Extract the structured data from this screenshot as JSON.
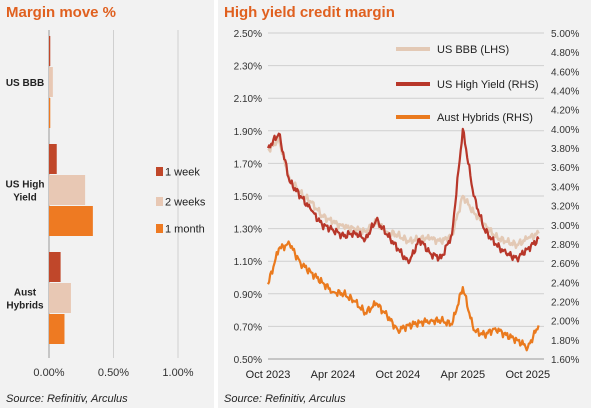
{
  "colors": {
    "title": "#e0601f",
    "one_week": "#c0472a",
    "two_weeks": "#e8c8b4",
    "one_month": "#ee7a22",
    "us_bbb": "#e3c9b5",
    "us_high_yield": "#b8372a",
    "aust_hybrids": "#ea7a1e",
    "panel_bg": "#f2f2f2"
  },
  "left": {
    "title": "Margin move %",
    "source": "Source: Refinitiv, Arculus"
  },
  "right": {
    "title": "High yield credit margin",
    "source": "Source: Refinitiv, Arculus"
  },
  "chart_data": [
    {
      "type": "bar",
      "orientation": "horizontal",
      "title": "Margin move %",
      "categories": [
        "US BBB",
        "US High Yield",
        "Aust Hybrids"
      ],
      "series": [
        {
          "name": "1 week",
          "values": [
            0.01,
            0.06,
            0.09
          ]
        },
        {
          "name": "2 weeks",
          "values": [
            0.03,
            0.28,
            0.17
          ]
        },
        {
          "name": "1 month",
          "values": [
            0.01,
            0.34,
            0.12
          ]
        }
      ],
      "xlim": [
        -0.05,
        1.25
      ],
      "xticks": [
        "0.00%",
        "0.50%",
        "1.00%"
      ],
      "grid": true,
      "legend": "right"
    },
    {
      "type": "line",
      "title": "High yield credit margin",
      "x_range": [
        "2023-10",
        "2025-11"
      ],
      "xticks": [
        "Oct 2023",
        "Apr 2024",
        "Oct 2024",
        "Apr 2025",
        "Oct 2025"
      ],
      "ylim_left": [
        0.5,
        2.5
      ],
      "ylim_right": [
        1.6,
        5.0
      ],
      "yticks_left": [
        "0.50%",
        "0.70%",
        "0.90%",
        "1.10%",
        "1.30%",
        "1.50%",
        "1.70%",
        "1.90%",
        "2.10%",
        "2.30%",
        "2.50%"
      ],
      "yticks_right": [
        "1.60%",
        "1.80%",
        "2.00%",
        "2.20%",
        "2.40%",
        "2.60%",
        "2.80%",
        "3.00%",
        "3.20%",
        "3.40%",
        "3.60%",
        "3.80%",
        "4.00%",
        "4.20%",
        "4.40%",
        "4.60%",
        "4.80%",
        "5.00%"
      ],
      "grid": true,
      "legend": "top-right",
      "series": [
        {
          "name": "US BBB (LHS)",
          "axis": "left",
          "x": [
            "2023-10",
            "2023-11",
            "2023-12",
            "2024-01",
            "2024-02",
            "2024-03",
            "2024-04",
            "2024-05",
            "2024-06",
            "2024-07",
            "2024-08",
            "2024-09",
            "2024-10",
            "2024-11",
            "2024-12",
            "2025-01",
            "2025-02",
            "2025-03",
            "2025-04",
            "2025-05",
            "2025-06",
            "2025-07",
            "2025-08",
            "2025-09",
            "2025-10",
            "2025-11"
          ],
          "values": [
            1.78,
            1.85,
            1.6,
            1.52,
            1.46,
            1.38,
            1.34,
            1.31,
            1.3,
            1.28,
            1.34,
            1.28,
            1.26,
            1.22,
            1.24,
            1.24,
            1.22,
            1.26,
            1.5,
            1.4,
            1.33,
            1.25,
            1.22,
            1.2,
            1.24,
            1.27
          ]
        },
        {
          "name": "US High Yield (RHS)",
          "axis": "right",
          "x": [
            "2023-10",
            "2023-11",
            "2023-12",
            "2024-01",
            "2024-02",
            "2024-03",
            "2024-04",
            "2024-05",
            "2024-06",
            "2024-07",
            "2024-08",
            "2024-09",
            "2024-10",
            "2024-11",
            "2024-12",
            "2025-01",
            "2025-02",
            "2025-03",
            "2025-04",
            "2025-05",
            "2025-06",
            "2025-07",
            "2025-08",
            "2025-09",
            "2025-10",
            "2025-11"
          ],
          "values": [
            3.8,
            3.95,
            3.45,
            3.3,
            3.15,
            3.0,
            2.95,
            2.88,
            2.92,
            2.85,
            3.05,
            2.9,
            2.75,
            2.6,
            2.85,
            2.7,
            2.65,
            2.9,
            4.0,
            3.3,
            2.95,
            2.8,
            2.7,
            2.65,
            2.75,
            2.85
          ]
        },
        {
          "name": "Aust Hybrids (RHS)",
          "axis": "right",
          "x": [
            "2023-10",
            "2023-11",
            "2023-12",
            "2024-01",
            "2024-02",
            "2024-03",
            "2024-04",
            "2024-05",
            "2024-06",
            "2024-07",
            "2024-08",
            "2024-09",
            "2024-10",
            "2024-11",
            "2024-12",
            "2025-01",
            "2025-02",
            "2025-03",
            "2025-04",
            "2025-05",
            "2025-06",
            "2025-07",
            "2025-08",
            "2025-09",
            "2025-10",
            "2025-11"
          ],
          "values": [
            2.38,
            2.75,
            2.8,
            2.6,
            2.5,
            2.4,
            2.3,
            2.28,
            2.2,
            2.08,
            2.18,
            2.05,
            1.9,
            1.95,
            1.98,
            2.0,
            2.0,
            1.96,
            2.35,
            1.9,
            1.85,
            1.92,
            1.85,
            1.8,
            1.72,
            1.95
          ]
        }
      ]
    }
  ]
}
